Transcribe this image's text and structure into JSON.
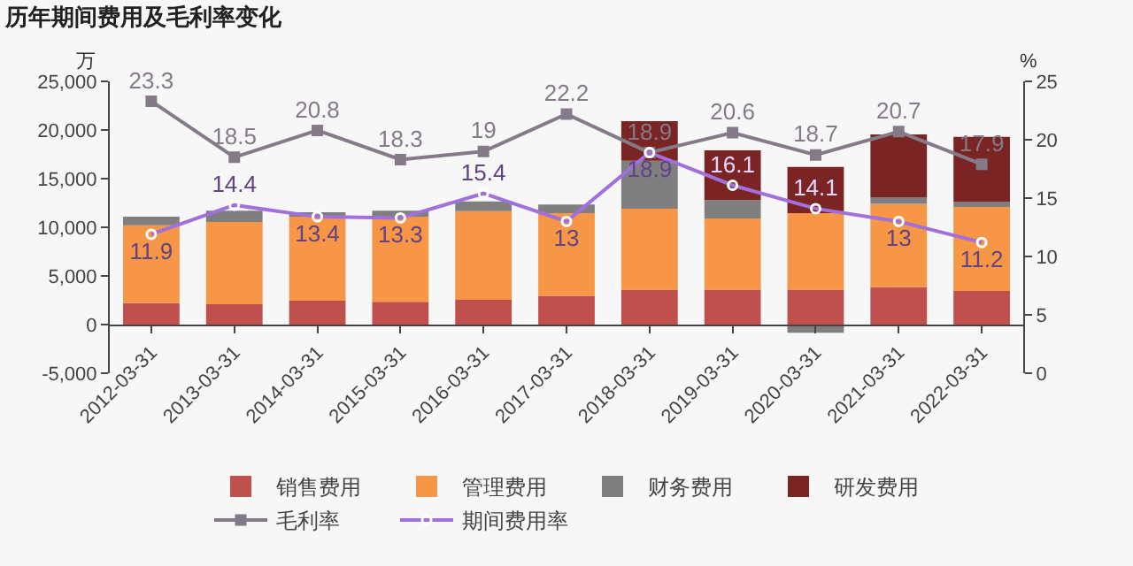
{
  "chart_data": {
    "type": "bar",
    "title": "历年期间费用及毛利率变化",
    "ylabel": "万",
    "y2label": "%",
    "stacked": true,
    "legend": "bottom",
    "grid": false,
    "categories": [
      "2012-03-31",
      "2013-03-31",
      "2014-03-31",
      "2015-03-31",
      "2016-03-31",
      "2017-03-31",
      "2018-03-31",
      "2019-03-31",
      "2020-03-31",
      "2021-03-31",
      "2022-03-31"
    ],
    "series": [
      {
        "name": "销售费用",
        "color": "#c0504d",
        "values": [
          2200,
          2100,
          2450,
          2350,
          2550,
          2950,
          3600,
          3600,
          3600,
          3850,
          3450
        ]
      },
      {
        "name": "管理费用",
        "color": "#f79646",
        "values": [
          8000,
          8450,
          8650,
          8750,
          9100,
          8500,
          8300,
          7300,
          7850,
          8550,
          8650
        ]
      },
      {
        "name": "财务费用",
        "color": "#7f7f7f",
        "values": [
          900,
          1150,
          450,
          600,
          1000,
          900,
          4950,
          1900,
          -830,
          700,
          500
        ]
      },
      {
        "name": "研发费用",
        "color": "#7b2424",
        "values": [
          null,
          null,
          null,
          null,
          null,
          null,
          4050,
          5100,
          4750,
          6450,
          6700
        ]
      },
      {
        "name": "毛利率",
        "type": "line",
        "axis": "y2",
        "marker": "square",
        "color": "#847a88",
        "values": [
          23.3,
          18.5,
          20.8,
          18.3,
          19,
          22.2,
          18.9,
          20.6,
          18.7,
          20.7,
          17.9
        ],
        "value_labels": [
          "23.3",
          "18.5",
          "20.8",
          "18.3",
          "19",
          "22.2",
          "18.9",
          "20.6",
          "18.7",
          "20.7",
          "17.9"
        ]
      },
      {
        "name": "期间费用率",
        "type": "line",
        "axis": "y2",
        "marker": "circle",
        "color": "#a070dc",
        "values": [
          11.9,
          14.4,
          13.4,
          13.3,
          15.4,
          13,
          18.9,
          16.1,
          14.1,
          13,
          11.2
        ],
        "value_labels": [
          "11.9",
          "14.4",
          "13.4",
          "13.3",
          "15.4",
          "13",
          "18.9",
          "16.1",
          "14.1",
          "13",
          "11.2"
        ]
      }
    ],
    "ylim": [
      -5000,
      25000
    ],
    "yticks": [
      {
        "value": -5000,
        "label": "-5,000"
      },
      0,
      {
        "value": 5000,
        "label": "5,000"
      },
      {
        "value": 10000,
        "label": "10,000"
      },
      {
        "value": 15000,
        "label": "15,000"
      },
      {
        "value": 20000,
        "label": "20,000"
      },
      {
        "value": 25000,
        "label": "25,000"
      }
    ],
    "y2lim": [
      0,
      25
    ],
    "y2ticks": [
      0,
      5,
      10,
      15,
      20,
      25
    ]
  }
}
